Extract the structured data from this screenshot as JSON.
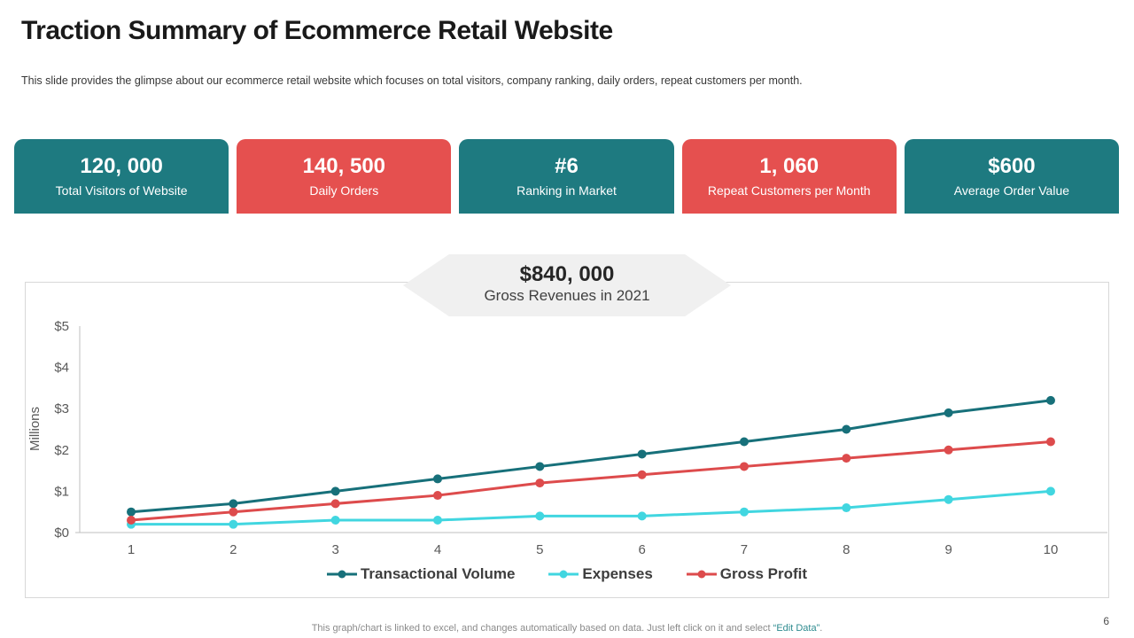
{
  "header": {
    "title": "Traction Summary of Ecommerce Retail Website",
    "subtitle": "This slide provides the glimpse about our ecommerce retail website which focuses on total visitors, company ranking, daily orders, repeat customers per month."
  },
  "cards": [
    {
      "value": "120, 000",
      "label": "Total Visitors of Website",
      "color": "#1e7a80"
    },
    {
      "value": "140, 500",
      "label": "Daily Orders",
      "color": "#e5504f"
    },
    {
      "value": "#6",
      "label": "Ranking in Market",
      "color": "#1e7a80"
    },
    {
      "value": "1, 060",
      "label": "Repeat Customers per Month",
      "color": "#e5504f"
    },
    {
      "value": "$600",
      "label": "Average Order Value",
      "color": "#1e7a80"
    }
  ],
  "banner": {
    "value": "$840, 000",
    "label": "Gross Revenues in 2021",
    "bg_color": "#f0f0f0"
  },
  "chart_data": {
    "type": "line",
    "x": [
      1,
      2,
      3,
      4,
      5,
      6,
      7,
      8,
      9,
      10
    ],
    "series": [
      {
        "name": "Transactional Volume",
        "color": "#17707a",
        "values": [
          0.5,
          0.7,
          1.0,
          1.3,
          1.6,
          1.9,
          2.2,
          2.5,
          2.9,
          3.2
        ]
      },
      {
        "name": "Expenses",
        "color": "#41d6e0",
        "values": [
          0.2,
          0.2,
          0.3,
          0.3,
          0.4,
          0.4,
          0.5,
          0.6,
          0.8,
          1.0
        ]
      },
      {
        "name": "Gross Profit",
        "color": "#dd4b4c",
        "values": [
          0.3,
          0.5,
          0.7,
          0.9,
          1.2,
          1.4,
          1.6,
          1.8,
          2.0,
          2.2
        ]
      }
    ],
    "title": "",
    "xlabel": "",
    "ylabel": "Millions",
    "ylim": [
      0,
      5
    ],
    "y_ticks": [
      "$0",
      "$1",
      "$2",
      "$3",
      "$4",
      "$5"
    ],
    "grid": false,
    "legend_position": "bottom",
    "axis_color": "#bfbfbf",
    "tick_label_color": "#595959"
  },
  "footer": {
    "text_prefix": "This graph/chart is linked to excel,  and changes automatically based on data. Just left click on it and select ",
    "quoted": "“Edit Data”",
    "suffix": ".",
    "quoted_color": "#2e8b8f"
  },
  "page": {
    "number": "6"
  }
}
